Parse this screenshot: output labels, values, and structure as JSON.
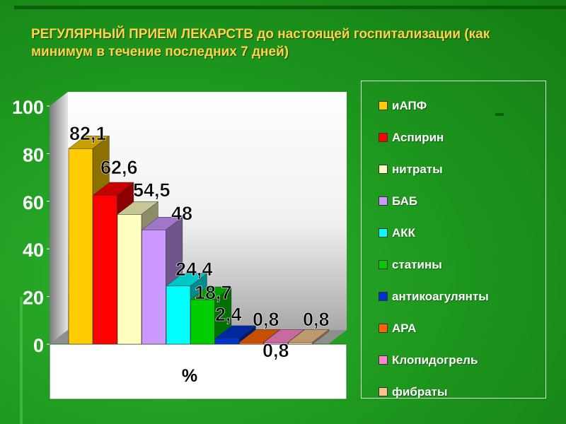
{
  "title": "РЕГУЛЯРНЫЙ ПРИЕМ ЛЕКАРСТВ до настоящей госпитализации  (как минимум  в течение  последних 7 дней)",
  "chart_data": {
    "type": "bar",
    "xlabel": "%",
    "ylim": [
      0,
      100
    ],
    "yticks": [
      0,
      20,
      40,
      60,
      80,
      100
    ],
    "series": [
      {
        "name": "иАПФ",
        "value": 82.1,
        "label": "82,1",
        "color": "#ffcc00"
      },
      {
        "name": "Аспирин",
        "value": 62.6,
        "label": "62,6",
        "color": "#ff0000"
      },
      {
        "name": "нитраты",
        "value": 54.5,
        "label": "54,5",
        "color": "#ffffc0"
      },
      {
        "name": "БАБ",
        "value": 48,
        "label": "48",
        "color": "#cc99ff"
      },
      {
        "name": "АКК",
        "value": 24.4,
        "label": "24,4",
        "color": "#00ffff"
      },
      {
        "name": "статины",
        "value": 18.7,
        "label": "18,7",
        "color": "#00cc00"
      },
      {
        "name": "антикоагулянты",
        "value": 2.4,
        "label": "2,4",
        "color": "#0033cc"
      },
      {
        "name": "АРА",
        "value": 0.8,
        "label": "0,8",
        "color": "#ff6600"
      },
      {
        "name": "Клопидогрель",
        "value": 0.8,
        "label": "0,8",
        "color": "#ff88cc"
      },
      {
        "name": "фибраты",
        "value": 0.8,
        "label": "0,8",
        "color": "#f4c48c"
      }
    ],
    "legend_position": "right"
  }
}
